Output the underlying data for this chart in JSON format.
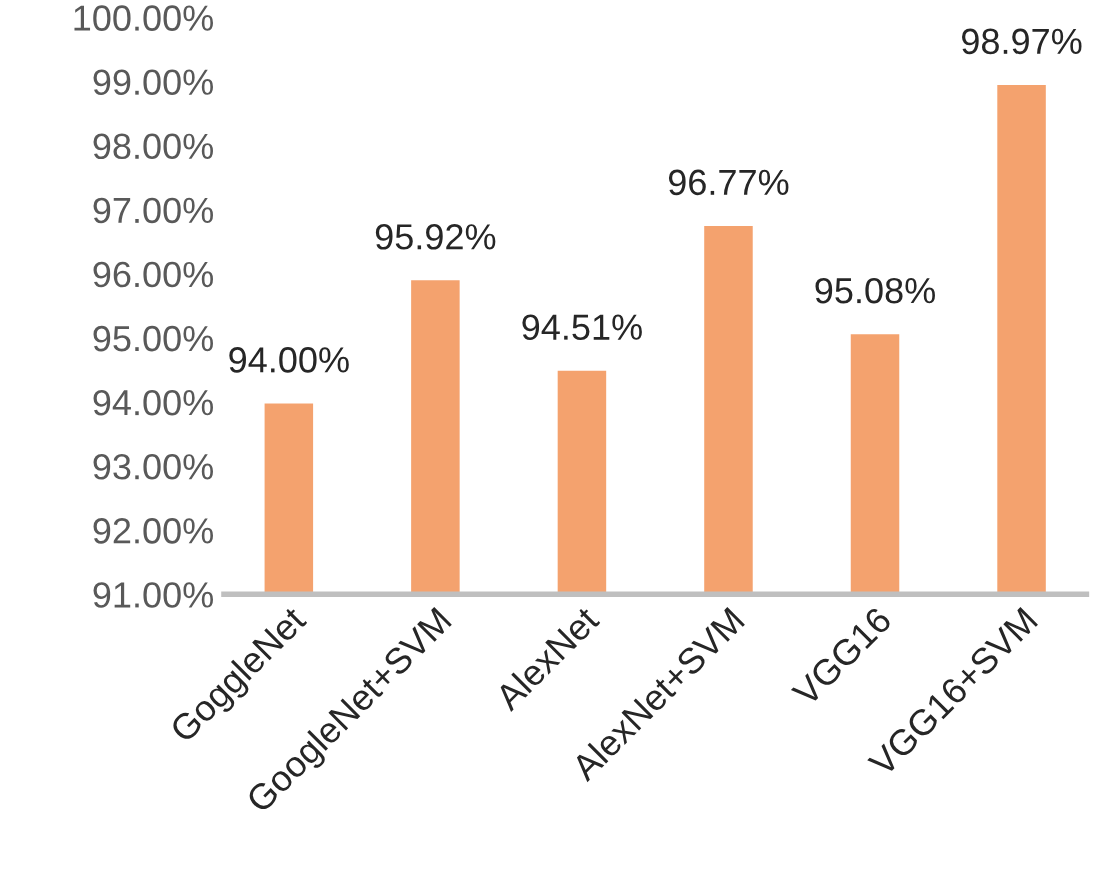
{
  "chart_data": {
    "type": "bar",
    "categories": [
      "GoggleNet",
      "GoogleNet+SVM",
      "AlexNet",
      "AlexNet+SVM",
      "VGG16",
      "VGG16+SVM"
    ],
    "values": [
      94.0,
      95.92,
      94.51,
      96.77,
      95.08,
      98.97
    ],
    "value_labels": [
      "94.00%",
      "95.92%",
      "94.51%",
      "96.77%",
      "95.08%",
      "98.97%"
    ],
    "color": "#f4a26e",
    "ylim": [
      91,
      100
    ],
    "yticks": [
      {
        "value": 91,
        "label": "91.00%"
      },
      {
        "value": 92,
        "label": "92.00%"
      },
      {
        "value": 93,
        "label": "93.00%"
      },
      {
        "value": 94,
        "label": "94.00%"
      },
      {
        "value": 95,
        "label": "95.00%"
      },
      {
        "value": 96,
        "label": "96.00%"
      },
      {
        "value": 97,
        "label": "97.00%"
      },
      {
        "value": 98,
        "label": "98.00%"
      },
      {
        "value": 99,
        "label": "99.00%"
      },
      {
        "value": 100,
        "label": "100.00%"
      }
    ],
    "grid": false,
    "legend": false
  }
}
